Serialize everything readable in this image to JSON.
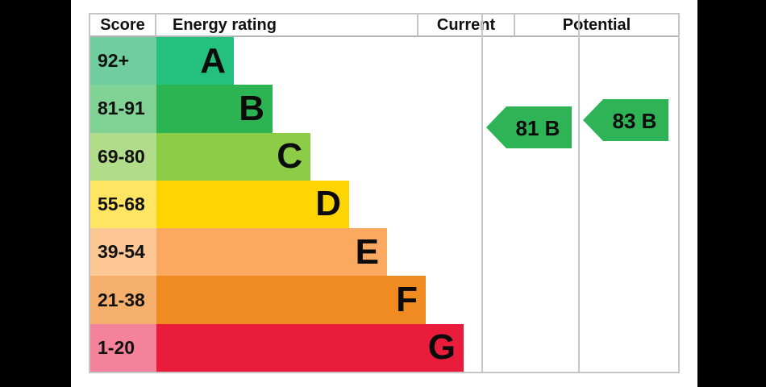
{
  "frame_color": "#000000",
  "page_color": "#ffffff",
  "border_color": "#c6c6c6",
  "header": {
    "score": "Score",
    "energy_rating": "Energy rating",
    "current": "Current",
    "potential": "Potential"
  },
  "chart_data": {
    "type": "bar",
    "chart_kind": "epc-energy-rating",
    "categories": [
      "A",
      "B",
      "C",
      "D",
      "E",
      "F",
      "G"
    ],
    "bands": [
      {
        "letter": "A",
        "score": "92+",
        "color": "#24c17e",
        "score_bg": "#6fcd9e"
      },
      {
        "letter": "B",
        "score": "81-91",
        "color": "#2db452",
        "score_bg": "#81d395"
      },
      {
        "letter": "C",
        "score": "69-80",
        "color": "#8ccc46",
        "score_bg": "#b1dc8a"
      },
      {
        "letter": "D",
        "score": "55-68",
        "color": "#fed501",
        "score_bg": "#ffe561"
      },
      {
        "letter": "E",
        "score": "39-54",
        "color": "#fba860",
        "score_bg": "#fcc795"
      },
      {
        "letter": "F",
        "score": "21-38",
        "color": "#f08b22",
        "score_bg": "#f6b06e"
      },
      {
        "letter": "G",
        "score": "1-20",
        "color": "#e91c3c",
        "score_bg": "#f4829b"
      }
    ],
    "current": {
      "value": 81,
      "band": "B",
      "label": "81 B"
    },
    "potential": {
      "value": 83,
      "band": "B",
      "label": "83 B"
    },
    "arrow_color": "#2eb457"
  }
}
